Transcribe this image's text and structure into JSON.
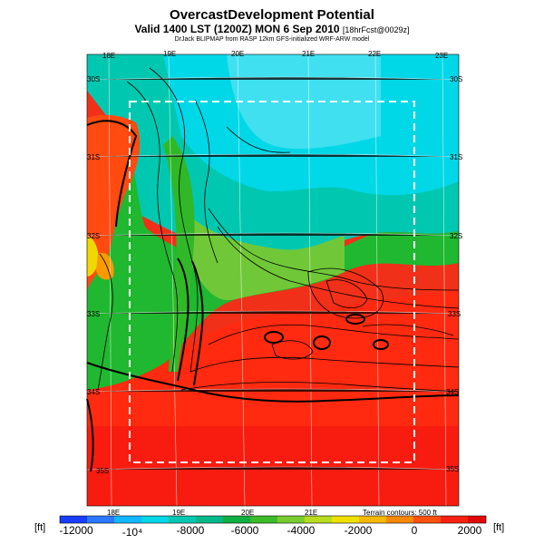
{
  "header": {
    "title": "OvercastDevelopment Potential",
    "subtitle_main": "Valid 1400 LST (1200Z) MON 6 Sep 2010",
    "subtitle_small": "[18hrFcst@0029z]",
    "credit": "DrJack BLIPMAP from RASP 12km GFS-initialized WRF-ARW model"
  },
  "map": {
    "lon_labels_top": [
      "18E",
      "19E",
      "20E",
      "21E",
      "22E",
      "23E"
    ],
    "lon_labels_bottom": [
      "18E",
      "19E",
      "20E",
      "21E"
    ],
    "lat_labels_left": [
      "30S",
      "31S",
      "32S",
      "33S",
      "34S",
      "35S"
    ],
    "lat_labels_right": [
      "30S",
      "31S",
      "32S",
      "33S",
      "34S",
      "35S"
    ],
    "terrain_note": "Terrain contours: 500 ft",
    "colors": {
      "deep_blue": "#1a3cff",
      "cyan": "#00d8f0",
      "teal": "#00c090",
      "green": "#1cb428",
      "light_green": "#78d040",
      "yellow": "#f8e000",
      "orange": "#f89000",
      "red_orange": "#ff3c10",
      "red": "#f01010"
    }
  },
  "colorbar": {
    "unit_left": "[ft]",
    "unit_right": "[ft]",
    "ticks": [
      "-12000",
      "-10⁴",
      "-8000",
      "-6000",
      "-4000",
      "-2000",
      "0",
      "2000"
    ]
  }
}
